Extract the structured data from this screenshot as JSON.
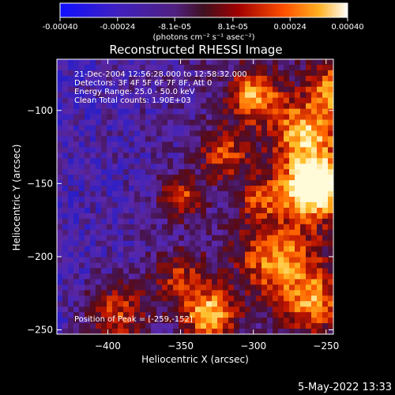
{
  "chart_data": {
    "type": "heatmap",
    "title": "Reconstructed RHESSI Image",
    "xlabel": "Heliocentric X (arcsec)",
    "ylabel": "Heliocentric Y (arcsec)",
    "xlim": [
      -435,
      -245
    ],
    "ylim": [
      -253,
      -65
    ],
    "xticks": [
      -400,
      -350,
      -300,
      -250
    ],
    "yticks": [
      -100,
      -150,
      -200,
      -250
    ],
    "colorbar": {
      "range": [
        -0.0004,
        0.0004
      ],
      "tick_values": [
        -0.0004,
        -0.00024,
        -8.1e-05,
        8.1e-05,
        0.00024,
        0.0004
      ],
      "tick_labels": [
        "-0.00040",
        "-0.00024",
        "-8.1e-05",
        "8.1e-05",
        "0.00024",
        "0.00040"
      ],
      "units_label": "(photons cm⁻² s⁻¹ asec⁻²)"
    },
    "annotations": [
      "21-Dec-2004 12:56:28.000 to 12:58:32.000",
      "Detectors: 3F 4F 5F 6F 7F 8F, Att 0",
      "Energy Range: 25.0 - 50.0 keV",
      "Clean     Total counts: 1.90E+03"
    ],
    "peak_label": "Position of Peak = [-259,-152]",
    "peak": [
      -259,
      -152
    ],
    "timestamp": "5-May-2022 13:33",
    "colors": {
      "background": "#000000",
      "low": "#2a14a0",
      "mid_low": "#5a2d8a",
      "mid": "#b01e10",
      "high": "#ff8000",
      "peak": "#fff7c8"
    }
  }
}
